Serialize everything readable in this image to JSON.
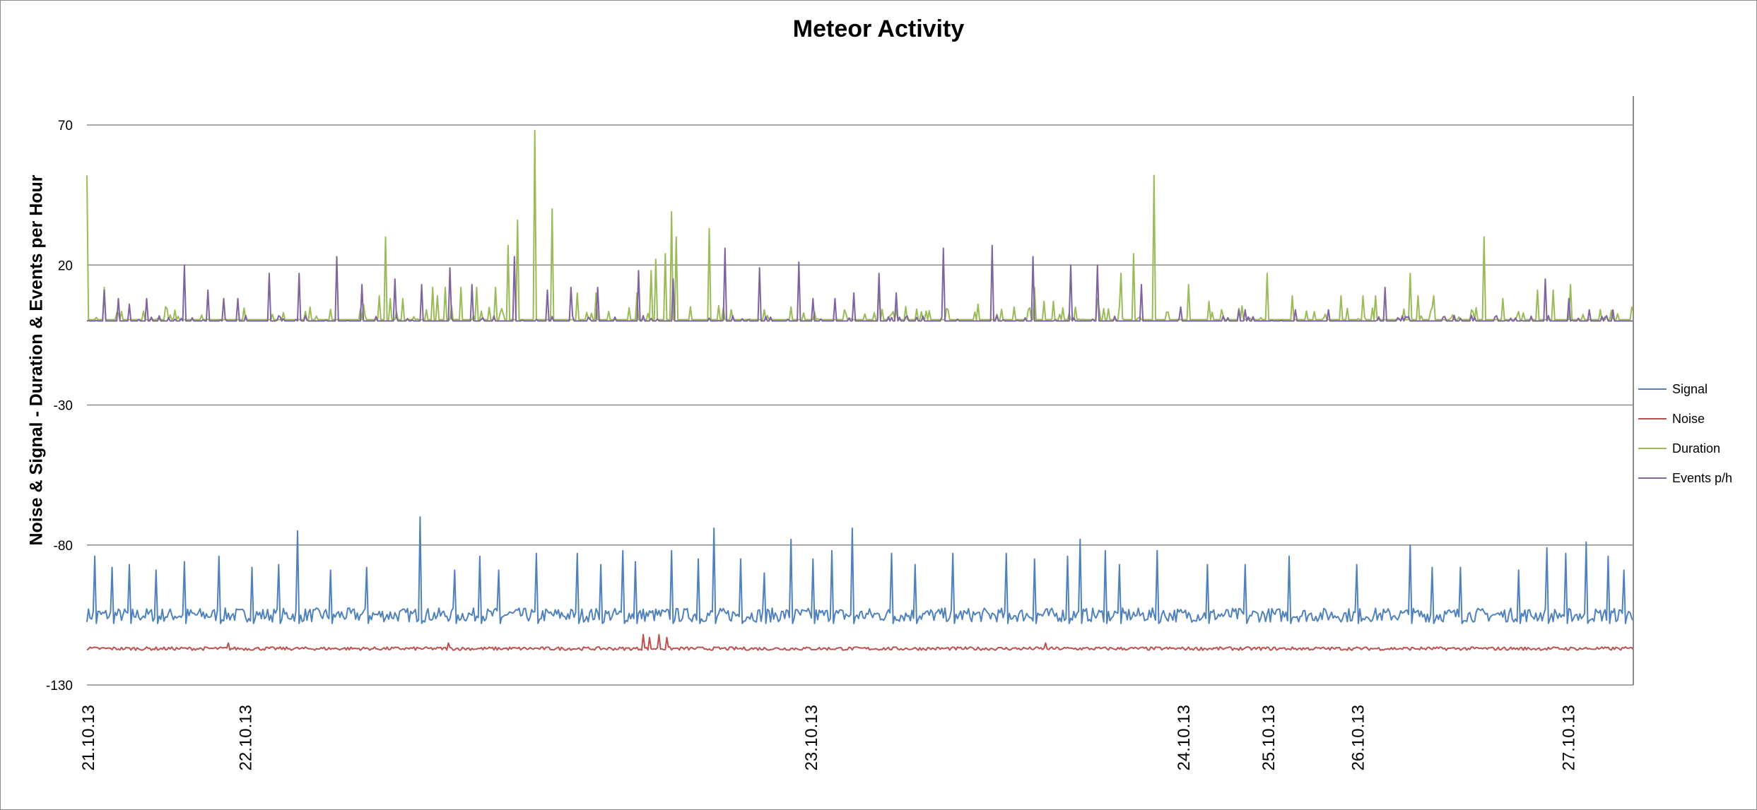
{
  "chart_data": {
    "type": "line",
    "title": "Meteor Activity",
    "ylabel": "Noise & Signal - Duration & Events per Hour",
    "xlabel": "",
    "ylim": [
      -130,
      70
    ],
    "yticks": [
      70,
      20,
      -30,
      -80,
      -130
    ],
    "grid": true,
    "legend_position": "right",
    "x_tick_labels": [
      "21.10.13",
      "22.10.13",
      "23.10.13",
      "24.10.13",
      "25.10.13",
      "26.10.13",
      "27.10.13"
    ],
    "x_tick_positions": [
      0,
      100,
      460,
      697,
      751,
      808,
      942
    ],
    "x_range": [
      0,
      984
    ],
    "series": [
      {
        "name": "Signal",
        "color": "#4f81bd",
        "baseline": -105,
        "spikes": [
          [
            5,
            -84
          ],
          [
            16,
            -88
          ],
          [
            27,
            -87
          ],
          [
            44,
            -89
          ],
          [
            62,
            -86
          ],
          [
            84,
            -84
          ],
          [
            105,
            -88
          ],
          [
            122,
            -87
          ],
          [
            134,
            -75
          ],
          [
            155,
            -89
          ],
          [
            178,
            -88
          ],
          [
            212,
            -70
          ],
          [
            234,
            -89
          ],
          [
            250,
            -84
          ],
          [
            262,
            -89
          ],
          [
            286,
            -83
          ],
          [
            312,
            -83
          ],
          [
            327,
            -87
          ],
          [
            341,
            -82
          ],
          [
            349,
            -86
          ],
          [
            372,
            -82
          ],
          [
            389,
            -85
          ],
          [
            399,
            -74
          ],
          [
            416,
            -85
          ],
          [
            431,
            -90
          ],
          [
            448,
            -78
          ],
          [
            462,
            -85
          ],
          [
            474,
            -82
          ],
          [
            487,
            -74
          ],
          [
            512,
            -83
          ],
          [
            527,
            -87
          ],
          [
            551,
            -83
          ],
          [
            585,
            -83
          ],
          [
            603,
            -85
          ],
          [
            624,
            -84
          ],
          [
            632,
            -78
          ],
          [
            648,
            -82
          ],
          [
            657,
            -87
          ],
          [
            681,
            -82
          ],
          [
            713,
            -87
          ],
          [
            737,
            -87
          ],
          [
            765,
            -84
          ],
          [
            808,
            -87
          ],
          [
            842,
            -80
          ],
          [
            856,
            -88
          ],
          [
            874,
            -88
          ],
          [
            911,
            -89
          ],
          [
            929,
            -81
          ],
          [
            941,
            -83
          ],
          [
            954,
            -79
          ],
          [
            968,
            -84
          ],
          [
            978,
            -89
          ]
        ]
      },
      {
        "name": "Noise",
        "color": "#c0504d",
        "baseline": -117,
        "spikes": [
          [
            354,
            -112
          ],
          [
            358,
            -113
          ],
          [
            364,
            -112
          ],
          [
            369,
            -113
          ],
          [
            90,
            -115
          ],
          [
            230,
            -115
          ],
          [
            610,
            -115
          ]
        ]
      },
      {
        "name": "Duration",
        "color": "#9bbb59",
        "baseline": 0.5,
        "spikes": [
          [
            0,
            52
          ],
          [
            11,
            12
          ],
          [
            125,
            3
          ],
          [
            142,
            5
          ],
          [
            176,
            6
          ],
          [
            186,
            9
          ],
          [
            190,
            30
          ],
          [
            193,
            8
          ],
          [
            201,
            8
          ],
          [
            216,
            4
          ],
          [
            223,
            9
          ],
          [
            220,
            12
          ],
          [
            228,
            12
          ],
          [
            238,
            12
          ],
          [
            248,
            12
          ],
          [
            260,
            12
          ],
          [
            268,
            27
          ],
          [
            274,
            36
          ],
          [
            285,
            68
          ],
          [
            296,
            40
          ],
          [
            312,
            10
          ],
          [
            324,
            10
          ],
          [
            350,
            10
          ],
          [
            359,
            18
          ],
          [
            362,
            22
          ],
          [
            368,
            24
          ],
          [
            372,
            39
          ],
          [
            375,
            30
          ],
          [
            396,
            33
          ],
          [
            410,
            4
          ],
          [
            431,
            4
          ],
          [
            482,
            4
          ],
          [
            504,
            12
          ],
          [
            548,
            4
          ],
          [
            567,
            6
          ],
          [
            590,
            5
          ],
          [
            603,
            12
          ],
          [
            609,
            7
          ],
          [
            615,
            7
          ],
          [
            643,
            8
          ],
          [
            658,
            17
          ],
          [
            666,
            24
          ],
          [
            679,
            52
          ],
          [
            701,
            13
          ],
          [
            714,
            7
          ],
          [
            751,
            17
          ],
          [
            767,
            9
          ],
          [
            798,
            9
          ],
          [
            812,
            9
          ],
          [
            820,
            9
          ],
          [
            842,
            17
          ],
          [
            847,
            9
          ],
          [
            857,
            9
          ],
          [
            889,
            30
          ],
          [
            901,
            8
          ],
          [
            923,
            11
          ],
          [
            933,
            11
          ],
          [
            944,
            13
          ]
        ]
      },
      {
        "name": "Events p/h",
        "color": "#8064a2",
        "baseline": 0,
        "spikes": [
          [
            11,
            11
          ],
          [
            20,
            8
          ],
          [
            27,
            6
          ],
          [
            38,
            8
          ],
          [
            62,
            20
          ],
          [
            77,
            11
          ],
          [
            87,
            8
          ],
          [
            96,
            8
          ],
          [
            116,
            17
          ],
          [
            135,
            17
          ],
          [
            159,
            23
          ],
          [
            175,
            13
          ],
          [
            196,
            15
          ],
          [
            213,
            13
          ],
          [
            231,
            19
          ],
          [
            245,
            13
          ],
          [
            272,
            23
          ],
          [
            293,
            11
          ],
          [
            308,
            12
          ],
          [
            325,
            12
          ],
          [
            351,
            18
          ],
          [
            373,
            15
          ],
          [
            406,
            26
          ],
          [
            428,
            19
          ],
          [
            453,
            21
          ],
          [
            462,
            8
          ],
          [
            476,
            8
          ],
          [
            488,
            10
          ],
          [
            504,
            17
          ],
          [
            515,
            10
          ],
          [
            545,
            26
          ],
          [
            576,
            27
          ],
          [
            602,
            23
          ],
          [
            626,
            20
          ],
          [
            643,
            20
          ],
          [
            671,
            13
          ],
          [
            696,
            5
          ],
          [
            733,
            4
          ],
          [
            737,
            4
          ],
          [
            769,
            4
          ],
          [
            790,
            4
          ],
          [
            826,
            12
          ],
          [
            928,
            15
          ],
          [
            943,
            8
          ],
          [
            956,
            4
          ],
          [
            971,
            4
          ]
        ]
      }
    ]
  }
}
